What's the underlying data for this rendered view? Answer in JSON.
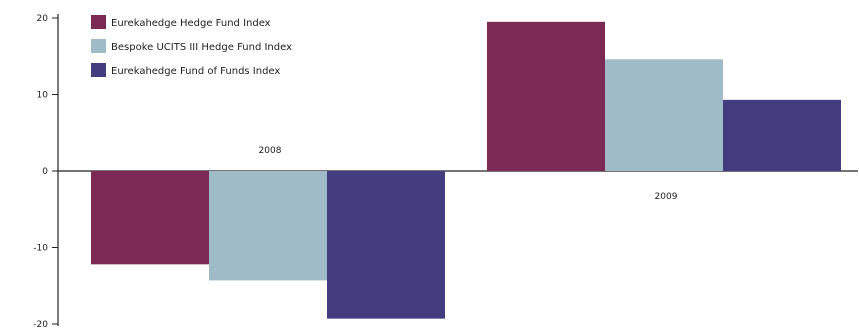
{
  "chart_data": {
    "type": "bar",
    "categories": [
      "2008",
      "2009"
    ],
    "series": [
      {
        "name": "Eurekahedge Hedge Fund Index",
        "values": [
          -12.2,
          19.5
        ],
        "color": "#7b2a56"
      },
      {
        "name": "Bespoke UCITS III Hedge Fund Index",
        "values": [
          -14.3,
          14.6
        ],
        "color": "#9fbbc7"
      },
      {
        "name": "Eurekahedge Fund of Funds Index",
        "values": [
          -19.3,
          9.3
        ],
        "color": "#433d80"
      }
    ],
    "ylim": [
      -20,
      20
    ],
    "yticks": [
      -20,
      -10,
      0,
      10,
      20
    ],
    "ytick_labels": [
      "-20",
      "-10",
      "0",
      "10",
      "20"
    ],
    "title": "",
    "xlabel": "",
    "ylabel": "",
    "grid": false,
    "legend_position": "top-left"
  }
}
